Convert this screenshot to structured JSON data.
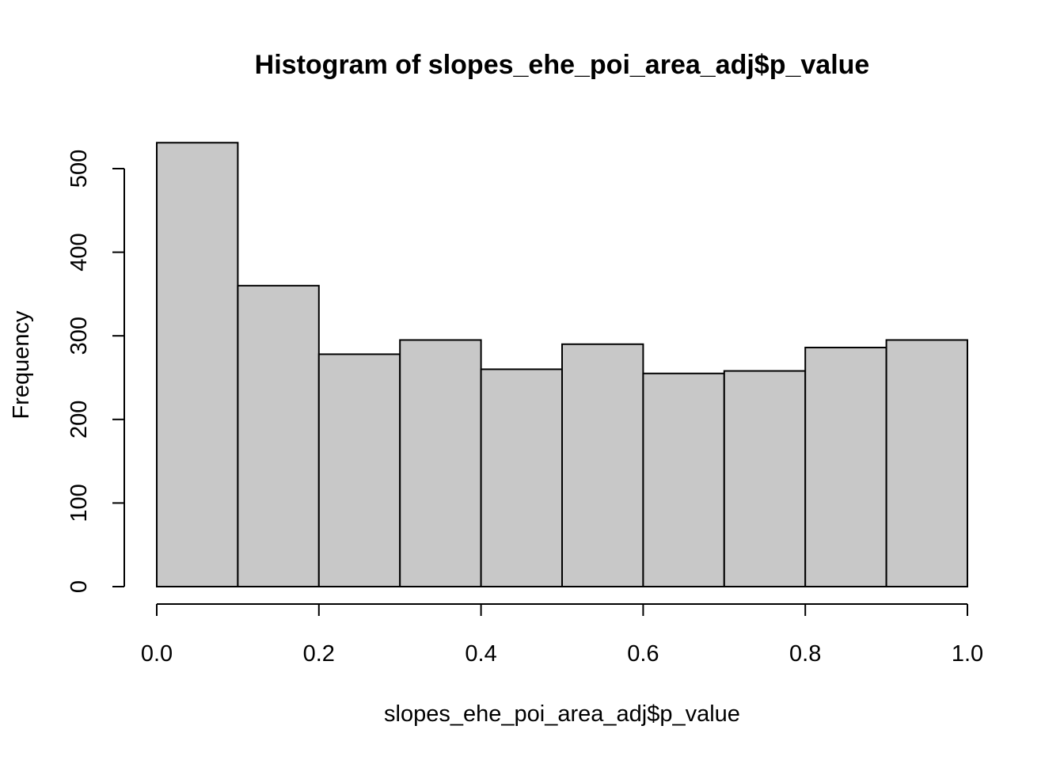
{
  "chart_data": {
    "type": "bar",
    "title": "Histogram of slopes_ehe_poi_area_adj$p_value",
    "xlabel": "slopes_ehe_poi_area_adj$p_value",
    "ylabel": "Frequency",
    "bins": [
      {
        "start": 0.0,
        "end": 0.1,
        "count": 531
      },
      {
        "start": 0.1,
        "end": 0.2,
        "count": 360
      },
      {
        "start": 0.2,
        "end": 0.3,
        "count": 278
      },
      {
        "start": 0.3,
        "end": 0.4,
        "count": 295
      },
      {
        "start": 0.4,
        "end": 0.5,
        "count": 260
      },
      {
        "start": 0.5,
        "end": 0.6,
        "count": 290
      },
      {
        "start": 0.6,
        "end": 0.7,
        "count": 255
      },
      {
        "start": 0.7,
        "end": 0.8,
        "count": 258
      },
      {
        "start": 0.8,
        "end": 0.9,
        "count": 286
      },
      {
        "start": 0.9,
        "end": 1.0,
        "count": 295
      }
    ],
    "xlim": [
      0.0,
      1.0
    ],
    "ylim": [
      0,
      500
    ],
    "x_ticks": [
      {
        "value": 0.0,
        "label": "0.0"
      },
      {
        "value": 0.2,
        "label": "0.2"
      },
      {
        "value": 0.4,
        "label": "0.4"
      },
      {
        "value": 0.6,
        "label": "0.6"
      },
      {
        "value": 0.8,
        "label": "0.8"
      },
      {
        "value": 1.0,
        "label": "1.0"
      }
    ],
    "y_ticks": [
      {
        "value": 0,
        "label": "0"
      },
      {
        "value": 100,
        "label": "100"
      },
      {
        "value": 200,
        "label": "200"
      },
      {
        "value": 300,
        "label": "300"
      },
      {
        "value": 400,
        "label": "400"
      },
      {
        "value": 500,
        "label": "500"
      }
    ],
    "grid": false,
    "legend": "none",
    "colors": {
      "bar_fill": "#c8c8c8",
      "bar_stroke": "#000000",
      "axis": "#000000",
      "background": "#ffffff"
    }
  }
}
